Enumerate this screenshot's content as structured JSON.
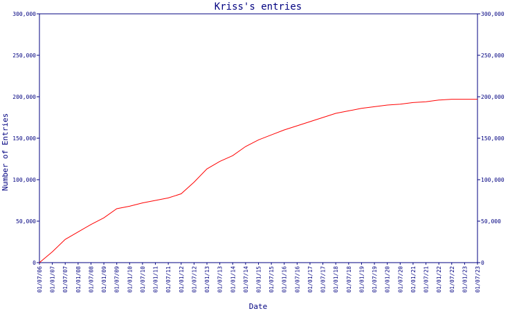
{
  "chart_data": {
    "type": "line",
    "title": "Kriss's entries",
    "xlabel": "Date",
    "ylabel": "Number of Entries",
    "ylim": [
      0,
      300000
    ],
    "yticks": [
      0,
      50000,
      100000,
      150000,
      200000,
      250000,
      300000
    ],
    "ytick_labels": [
      "0",
      "50,000",
      "100,000",
      "150,000",
      "200,000",
      "250,000",
      "300,000"
    ],
    "right_axis": true,
    "grid": false,
    "line_color": "#ff0000",
    "axis_color": "#000080",
    "x": [
      "01/07/06",
      "01/01/07",
      "01/07/07",
      "01/01/08",
      "01/07/08",
      "01/01/09",
      "01/07/09",
      "01/01/10",
      "01/07/10",
      "01/01/11",
      "01/07/11",
      "01/01/12",
      "01/07/12",
      "01/01/13",
      "01/07/13",
      "01/01/14",
      "01/07/14",
      "01/01/15",
      "01/07/15",
      "01/01/16",
      "01/07/16",
      "01/01/17",
      "01/07/17",
      "01/01/18",
      "01/07/18",
      "01/01/19",
      "01/07/19",
      "01/01/20",
      "01/07/20",
      "01/01/21",
      "01/07/21",
      "01/01/22",
      "01/07/22",
      "01/01/23",
      "01/07/23"
    ],
    "series": [
      {
        "values": [
          0,
          13000,
          28000,
          37000,
          46000,
          54000,
          65000,
          68000,
          72000,
          75000,
          78000,
          83000,
          97000,
          113000,
          122000,
          129000,
          140000,
          148000,
          154000,
          160000,
          165000,
          170000,
          175000,
          180000,
          183000,
          186000,
          188000,
          190000,
          191000,
          193000,
          194000,
          196000,
          197000,
          197000,
          197000
        ]
      }
    ]
  }
}
